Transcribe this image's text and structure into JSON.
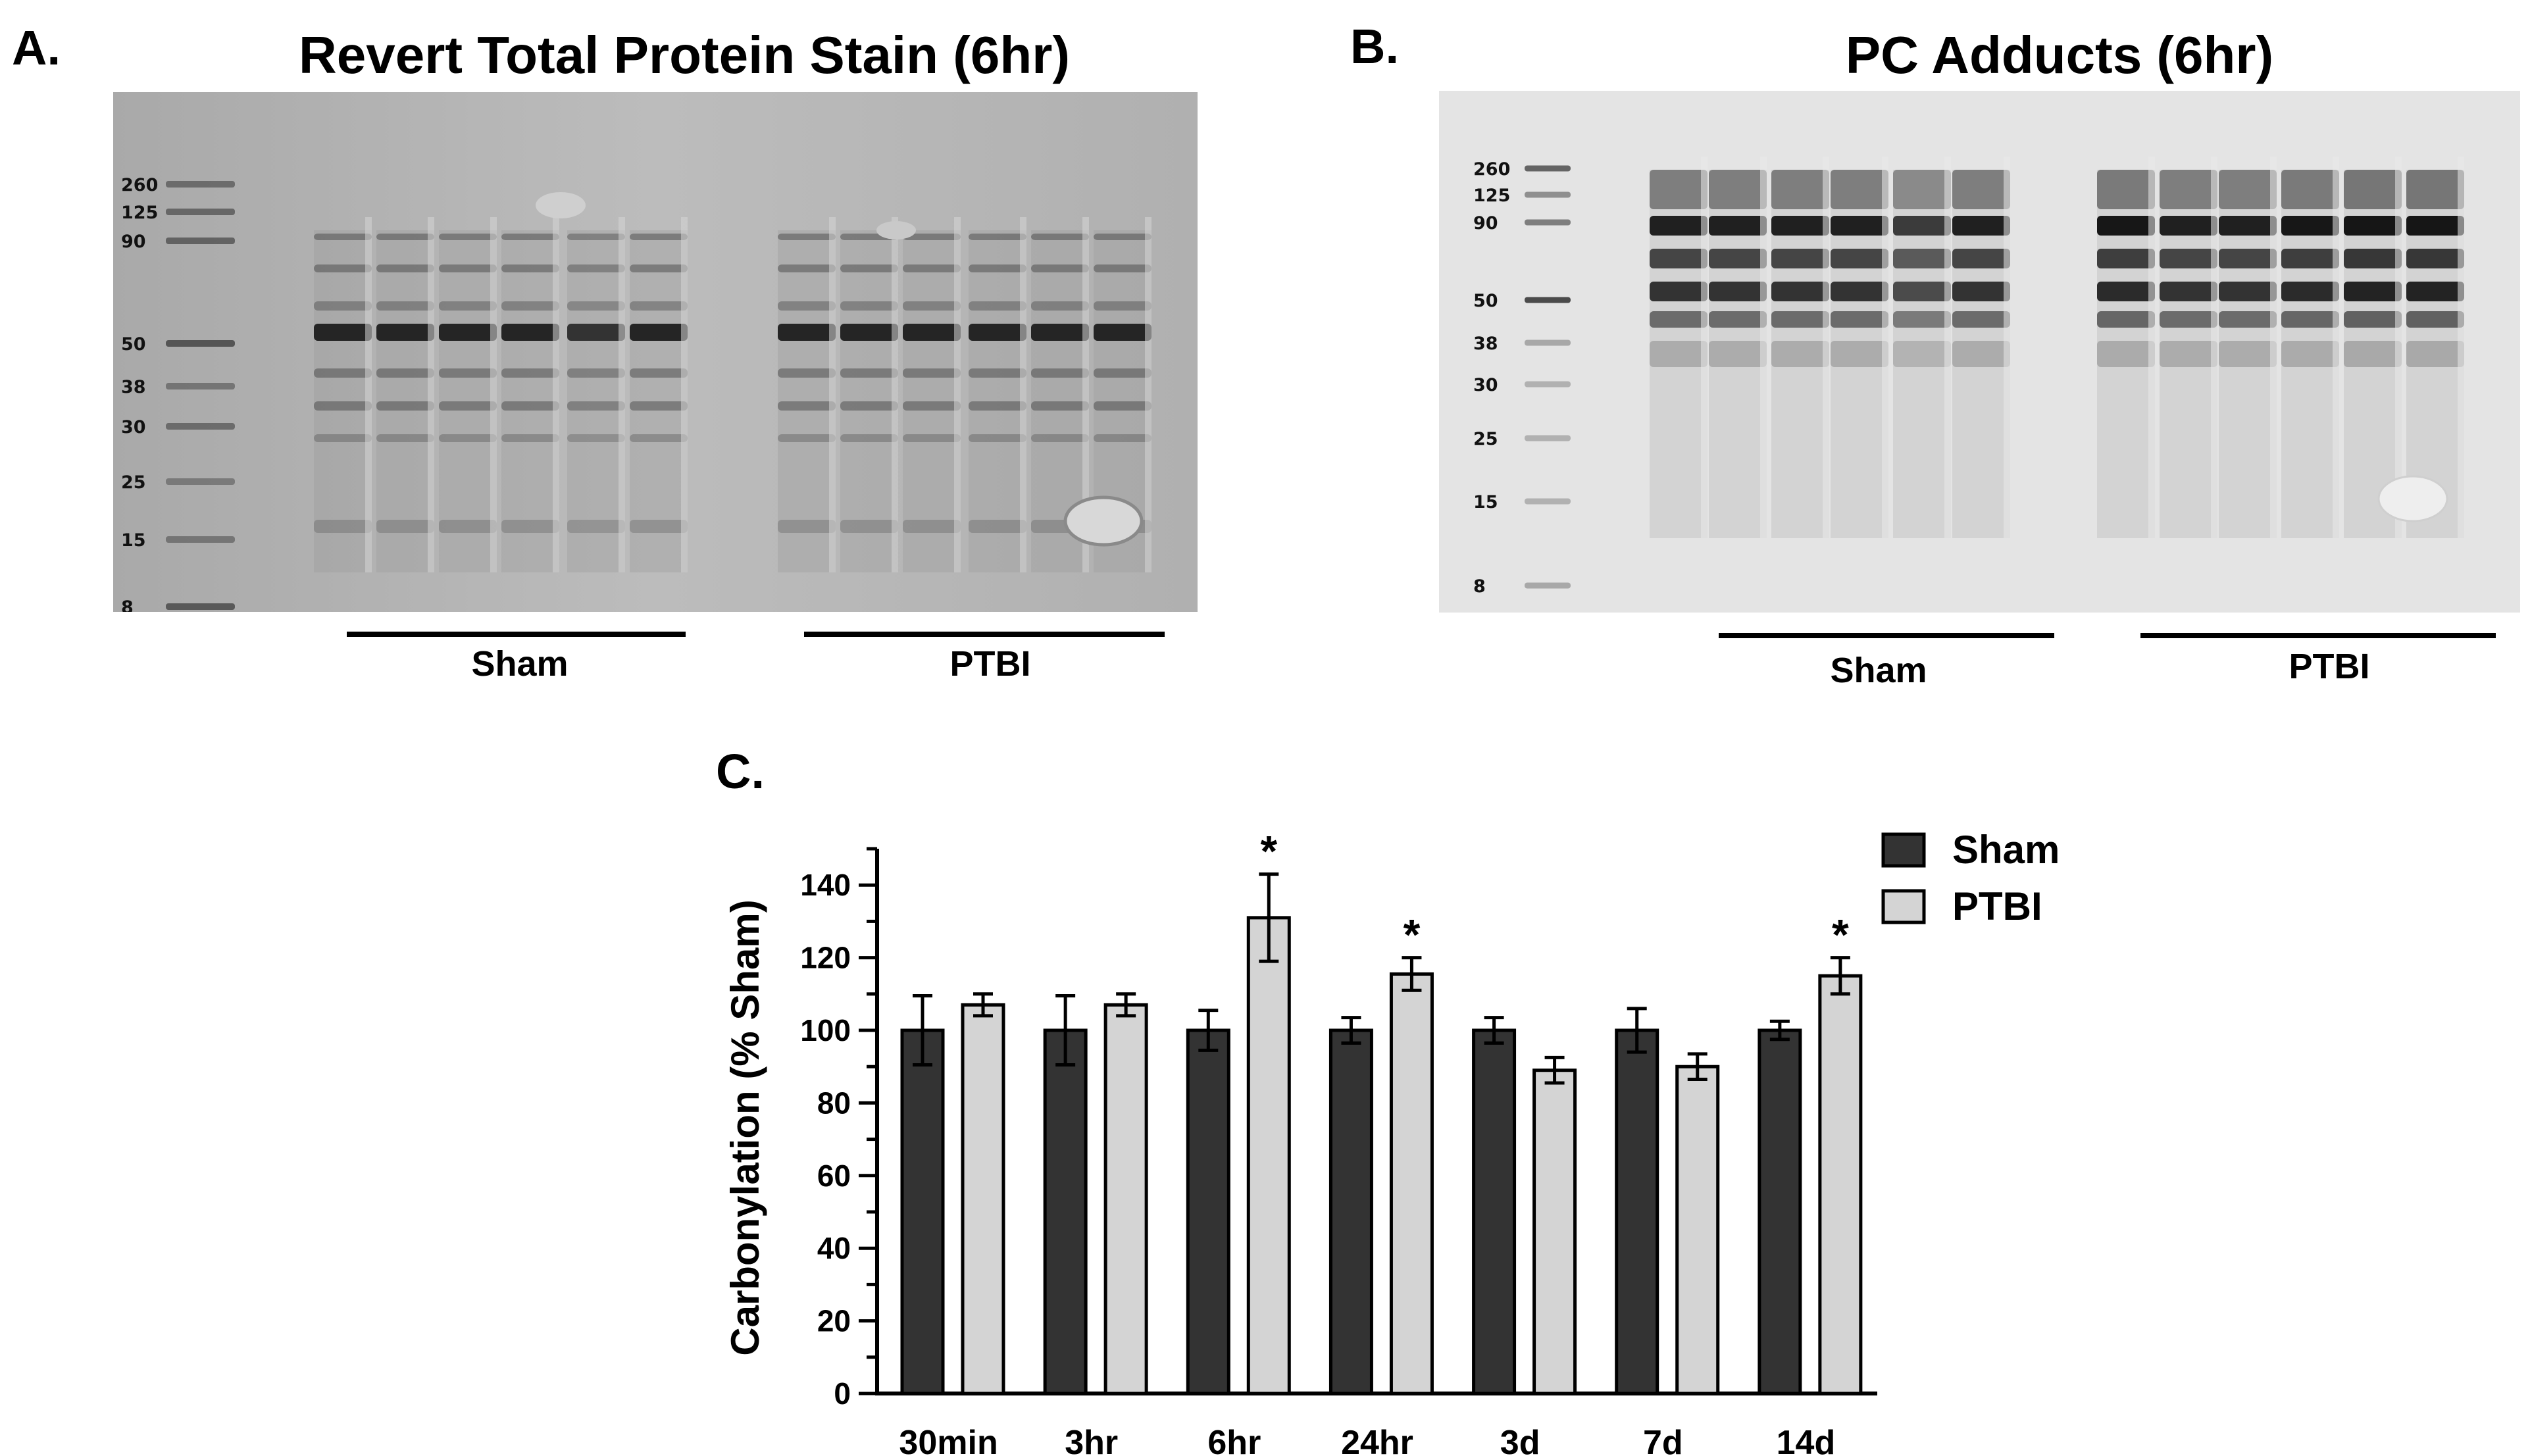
{
  "panel_a": {
    "letter": "A.",
    "title": "Revert Total Protein Stain (6hr)",
    "ladder": [
      "260",
      "125",
      "90",
      "50",
      "38",
      "30",
      "25",
      "15",
      "8"
    ],
    "groups": [
      "Sham",
      "PTBI"
    ]
  },
  "panel_b": {
    "letter": "B.",
    "title": "PC Adducts (6hr)",
    "ladder": [
      "260",
      "125",
      "90",
      "50",
      "38",
      "30",
      "25",
      "15",
      "8"
    ],
    "groups": [
      "Sham",
      "PTBI"
    ]
  },
  "panel_c": {
    "letter": "C."
  },
  "chart_data": {
    "type": "bar",
    "categories": [
      "30min",
      "3hr",
      "6hr",
      "24hr",
      "3d",
      "7d",
      "14d"
    ],
    "series": [
      {
        "name": "Sham",
        "color": "#333333",
        "values": [
          100,
          100,
          100,
          100,
          100,
          100,
          100
        ],
        "errors": [
          9.5,
          9.5,
          5.5,
          3.5,
          3.5,
          6,
          2.5
        ]
      },
      {
        "name": "PTBI",
        "color": "#d4d4d4",
        "values": [
          107,
          107,
          131,
          115.5,
          89,
          90,
          115
        ],
        "errors": [
          3,
          3,
          12,
          4.5,
          3.5,
          3.5,
          5
        ]
      }
    ],
    "significant": [
      "",
      "",
      "*",
      "*",
      "",
      "",
      "*"
    ],
    "ylabel": "Carbonylation (% Sham)",
    "xlabel": "",
    "ylim": [
      0,
      150
    ],
    "yticks": [
      0,
      20,
      40,
      60,
      80,
      100,
      120,
      140
    ],
    "legend_position": "top-right",
    "grid": false
  }
}
